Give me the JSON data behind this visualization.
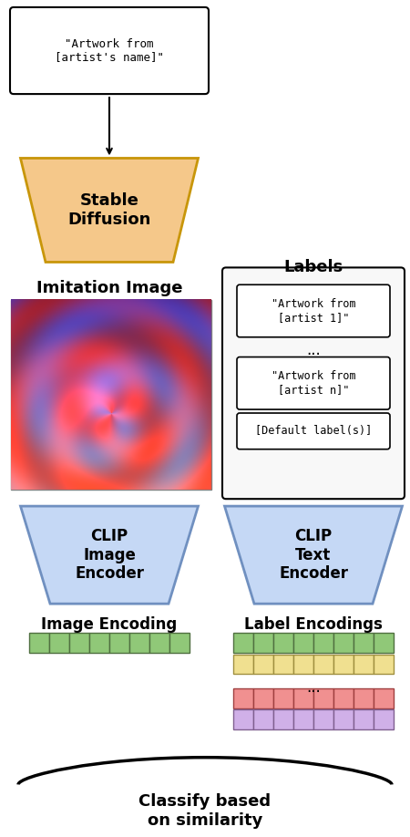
{
  "title": "",
  "bg_color": "#ffffff",
  "prompt_box_text": "\"Artwork from\n[artist's name]\"",
  "stable_diffusion_text": "Stable\nDiffusion",
  "imitation_image_label": "Imitation Image",
  "labels_title": "Labels",
  "label1_text": "\"Artwork from\n[artist 1]\"",
  "dots_text": "...",
  "label2_text": "\"Artwork from\n[artist n]\"",
  "default_label_text": "[Default label(s)]",
  "clip_image_text": "CLIP\nImage\nEncoder",
  "clip_text_text": "CLIP\nText\nEncoder",
  "image_encoding_label": "Image Encoding",
  "label_encodings_label": "Label Encodings",
  "classify_text": "Classify based\non similarity",
  "sd_trapezoid_color": "#f5c88a",
  "sd_trapezoid_edge_color": "#c8960a",
  "clip_trapezoid_color": "#c5d8f5",
  "clip_trapezoid_edge_color": "#7090c0",
  "encoding_green_color": "#90c878",
  "encoding_green_edge": "#507040",
  "encoding_yellow_color": "#f0e090",
  "encoding_yellow_edge": "#a09040",
  "encoding_red_color": "#f09090",
  "encoding_red_edge": "#a04040",
  "encoding_purple_color": "#d0b0e8",
  "encoding_purple_edge": "#806090",
  "labels_box_color": "#ffffff",
  "labels_box_edge": "#000000",
  "prompt_box_color": "#ffffff",
  "prompt_box_edge": "#000000"
}
